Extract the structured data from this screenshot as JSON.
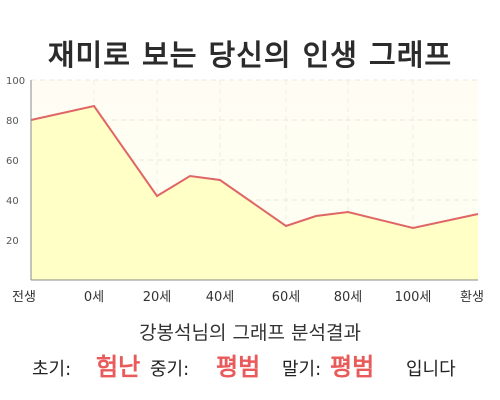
{
  "title": "재미로 보는 당신의 인생 그래프",
  "chart_data": {
    "type": "area",
    "x_labels": [
      "전생",
      "0세",
      "20세",
      "40세",
      "60세",
      "80세",
      "100세",
      "환생"
    ],
    "points": [
      {
        "x": "전생",
        "y": 80
      },
      {
        "x": "0세",
        "y": 87
      },
      {
        "x": "20세",
        "y": 42
      },
      {
        "x": "30세",
        "y": 52
      },
      {
        "x": "40세",
        "y": 50
      },
      {
        "x": "60세",
        "y": 27
      },
      {
        "x": "70세",
        "y": 32
      },
      {
        "x": "80세",
        "y": 34
      },
      {
        "x": "100세",
        "y": 26
      },
      {
        "x": "환생",
        "y": 33
      }
    ],
    "y_ticks": [
      "20",
      "40",
      "60",
      "80",
      "100"
    ],
    "ylim": [
      0,
      100
    ],
    "grid": true,
    "colors": {
      "line": "#e06666",
      "fill": "#ffffc6",
      "fill_top": "#fffbe8"
    }
  },
  "subtitle": "강봉석님의 그래프 분석결과",
  "result": {
    "early_label": "초기:",
    "early_value": "험난",
    "mid_label": "중기:",
    "mid_value": "평범",
    "late_label": "말기:",
    "late_value": "평범",
    "suffix": "입니다"
  }
}
